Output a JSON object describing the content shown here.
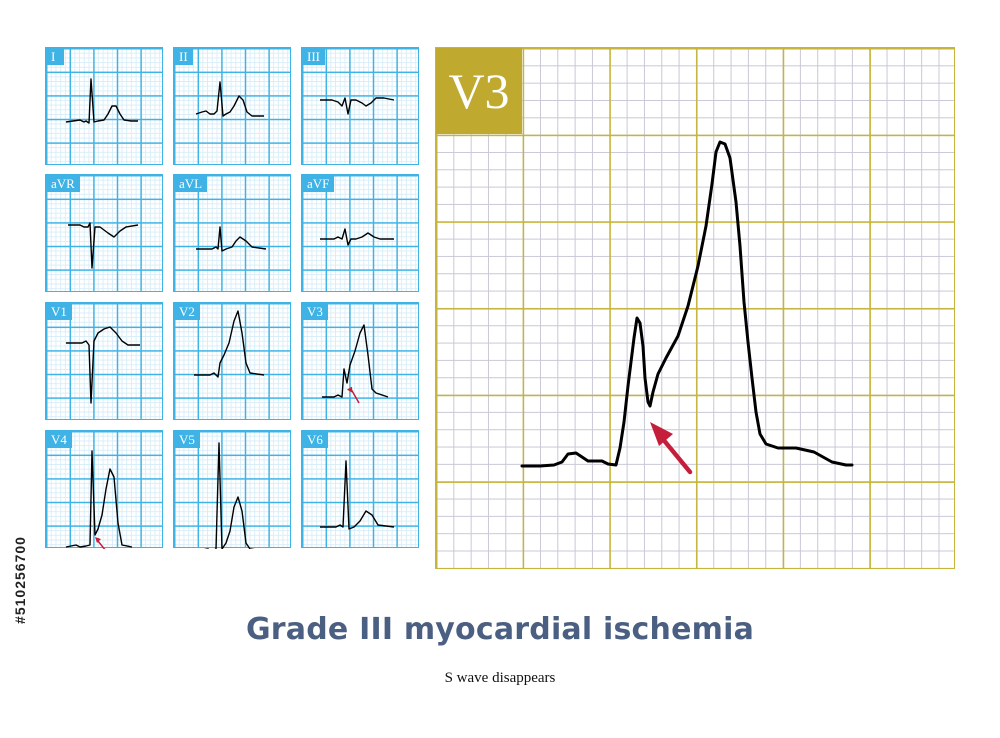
{
  "stock_id": "#510256700",
  "leads": [
    {
      "label": "I"
    },
    {
      "label": "II"
    },
    {
      "label": "III"
    },
    {
      "label": "aVR"
    },
    {
      "label": "aVL"
    },
    {
      "label": "aVF"
    },
    {
      "label": "V1"
    },
    {
      "label": "V2"
    },
    {
      "label": "V3"
    },
    {
      "label": "V4"
    },
    {
      "label": "V5"
    },
    {
      "label": "V6"
    }
  ],
  "detail": {
    "label": "V3"
  },
  "title": "Grade III myocardial ischemia",
  "subtitle": "S wave disappears",
  "colors": {
    "small_grid_major": "#3fb3e6",
    "small_grid_minor": "#d9eef9",
    "big_grid_major": "#c6b53a",
    "big_grid_minor": "#c8c8d8",
    "label_bg_small": "#3fb3e6",
    "label_bg_big": "#bfaa2f",
    "trace": "#000000",
    "arrow": "#c41e3a",
    "title": "#4a5f82"
  }
}
